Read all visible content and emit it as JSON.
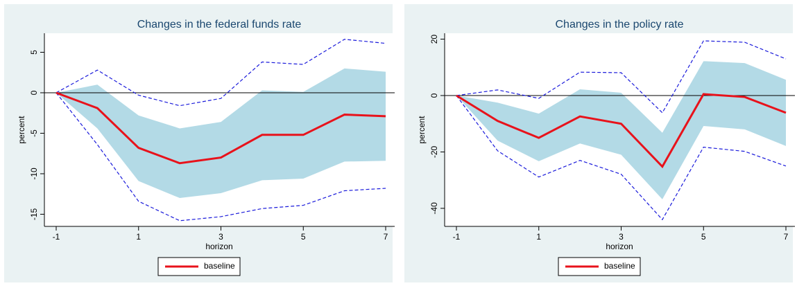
{
  "chart_data": [
    {
      "type": "line",
      "title": "Changes in the federal funds rate",
      "xlabel": "horizon",
      "ylabel": "percent",
      "x": [
        -1,
        0,
        1,
        2,
        3,
        4,
        5,
        6,
        7
      ],
      "xlim": [
        -1,
        7
      ],
      "xticks": [
        -1,
        1,
        3,
        5,
        7
      ],
      "ylim": [
        -16.5,
        7.35
      ],
      "yticks": [
        -15,
        -10,
        -5,
        0,
        5
      ],
      "refline": 0,
      "series": [
        {
          "name": "baseline",
          "color": "#e8121b",
          "values": [
            0,
            -1.9,
            -6.8,
            -8.7,
            -8.0,
            -5.2,
            -5.2,
            -2.7,
            -2.9
          ]
        }
      ],
      "band_color": "#b3dae6",
      "band_upper": [
        0,
        1.0,
        -2.8,
        -4.4,
        -3.6,
        0.3,
        0.1,
        3.0,
        2.6
      ],
      "band_lower": [
        0,
        -4.4,
        -10.9,
        -13.0,
        -12.4,
        -10.8,
        -10.6,
        -8.5,
        -8.4
      ],
      "ci_color": "#1a1adb",
      "ci_upper": [
        0,
        2.8,
        -0.3,
        -1.6,
        -0.7,
        3.8,
        3.5,
        6.6,
        6.1
      ],
      "ci_lower": [
        0,
        -6.4,
        -13.4,
        -15.8,
        -15.3,
        -14.3,
        -13.9,
        -12.1,
        -11.8
      ]
    },
    {
      "type": "line",
      "title": "Changes in the policy rate",
      "xlabel": "horizon",
      "ylabel": "percent",
      "x": [
        -1,
        0,
        1,
        2,
        3,
        4,
        5,
        6,
        7
      ],
      "xlim": [
        -1,
        7
      ],
      "xticks": [
        -1,
        1,
        3,
        5,
        7
      ],
      "ylim": [
        -46.4,
        22.1
      ],
      "yticks": [
        -40,
        -20,
        0,
        20
      ],
      "refline": 0,
      "series": [
        {
          "name": "baseline",
          "color": "#e8121b",
          "values": [
            0,
            -9,
            -15,
            -7.4,
            -10,
            -25.2,
            0.5,
            -0.5,
            -6.1
          ]
        }
      ],
      "band_color": "#b3dae6",
      "band_upper": [
        0,
        -2.5,
        -6.4,
        2.2,
        1,
        -13.2,
        12.2,
        11.5,
        5.6
      ],
      "band_lower": [
        0,
        -16,
        -23.3,
        -17,
        -21,
        -36.8,
        -10.8,
        -12,
        -17.9
      ],
      "ci_color": "#1a1adb",
      "ci_upper": [
        0,
        2,
        -1,
        8.3,
        8.1,
        -6.1,
        19.4,
        18.9,
        13
      ],
      "ci_lower": [
        0,
        -19.6,
        -28.9,
        -23,
        -27.9,
        -44,
        -18.3,
        -19.8,
        -25
      ]
    }
  ]
}
